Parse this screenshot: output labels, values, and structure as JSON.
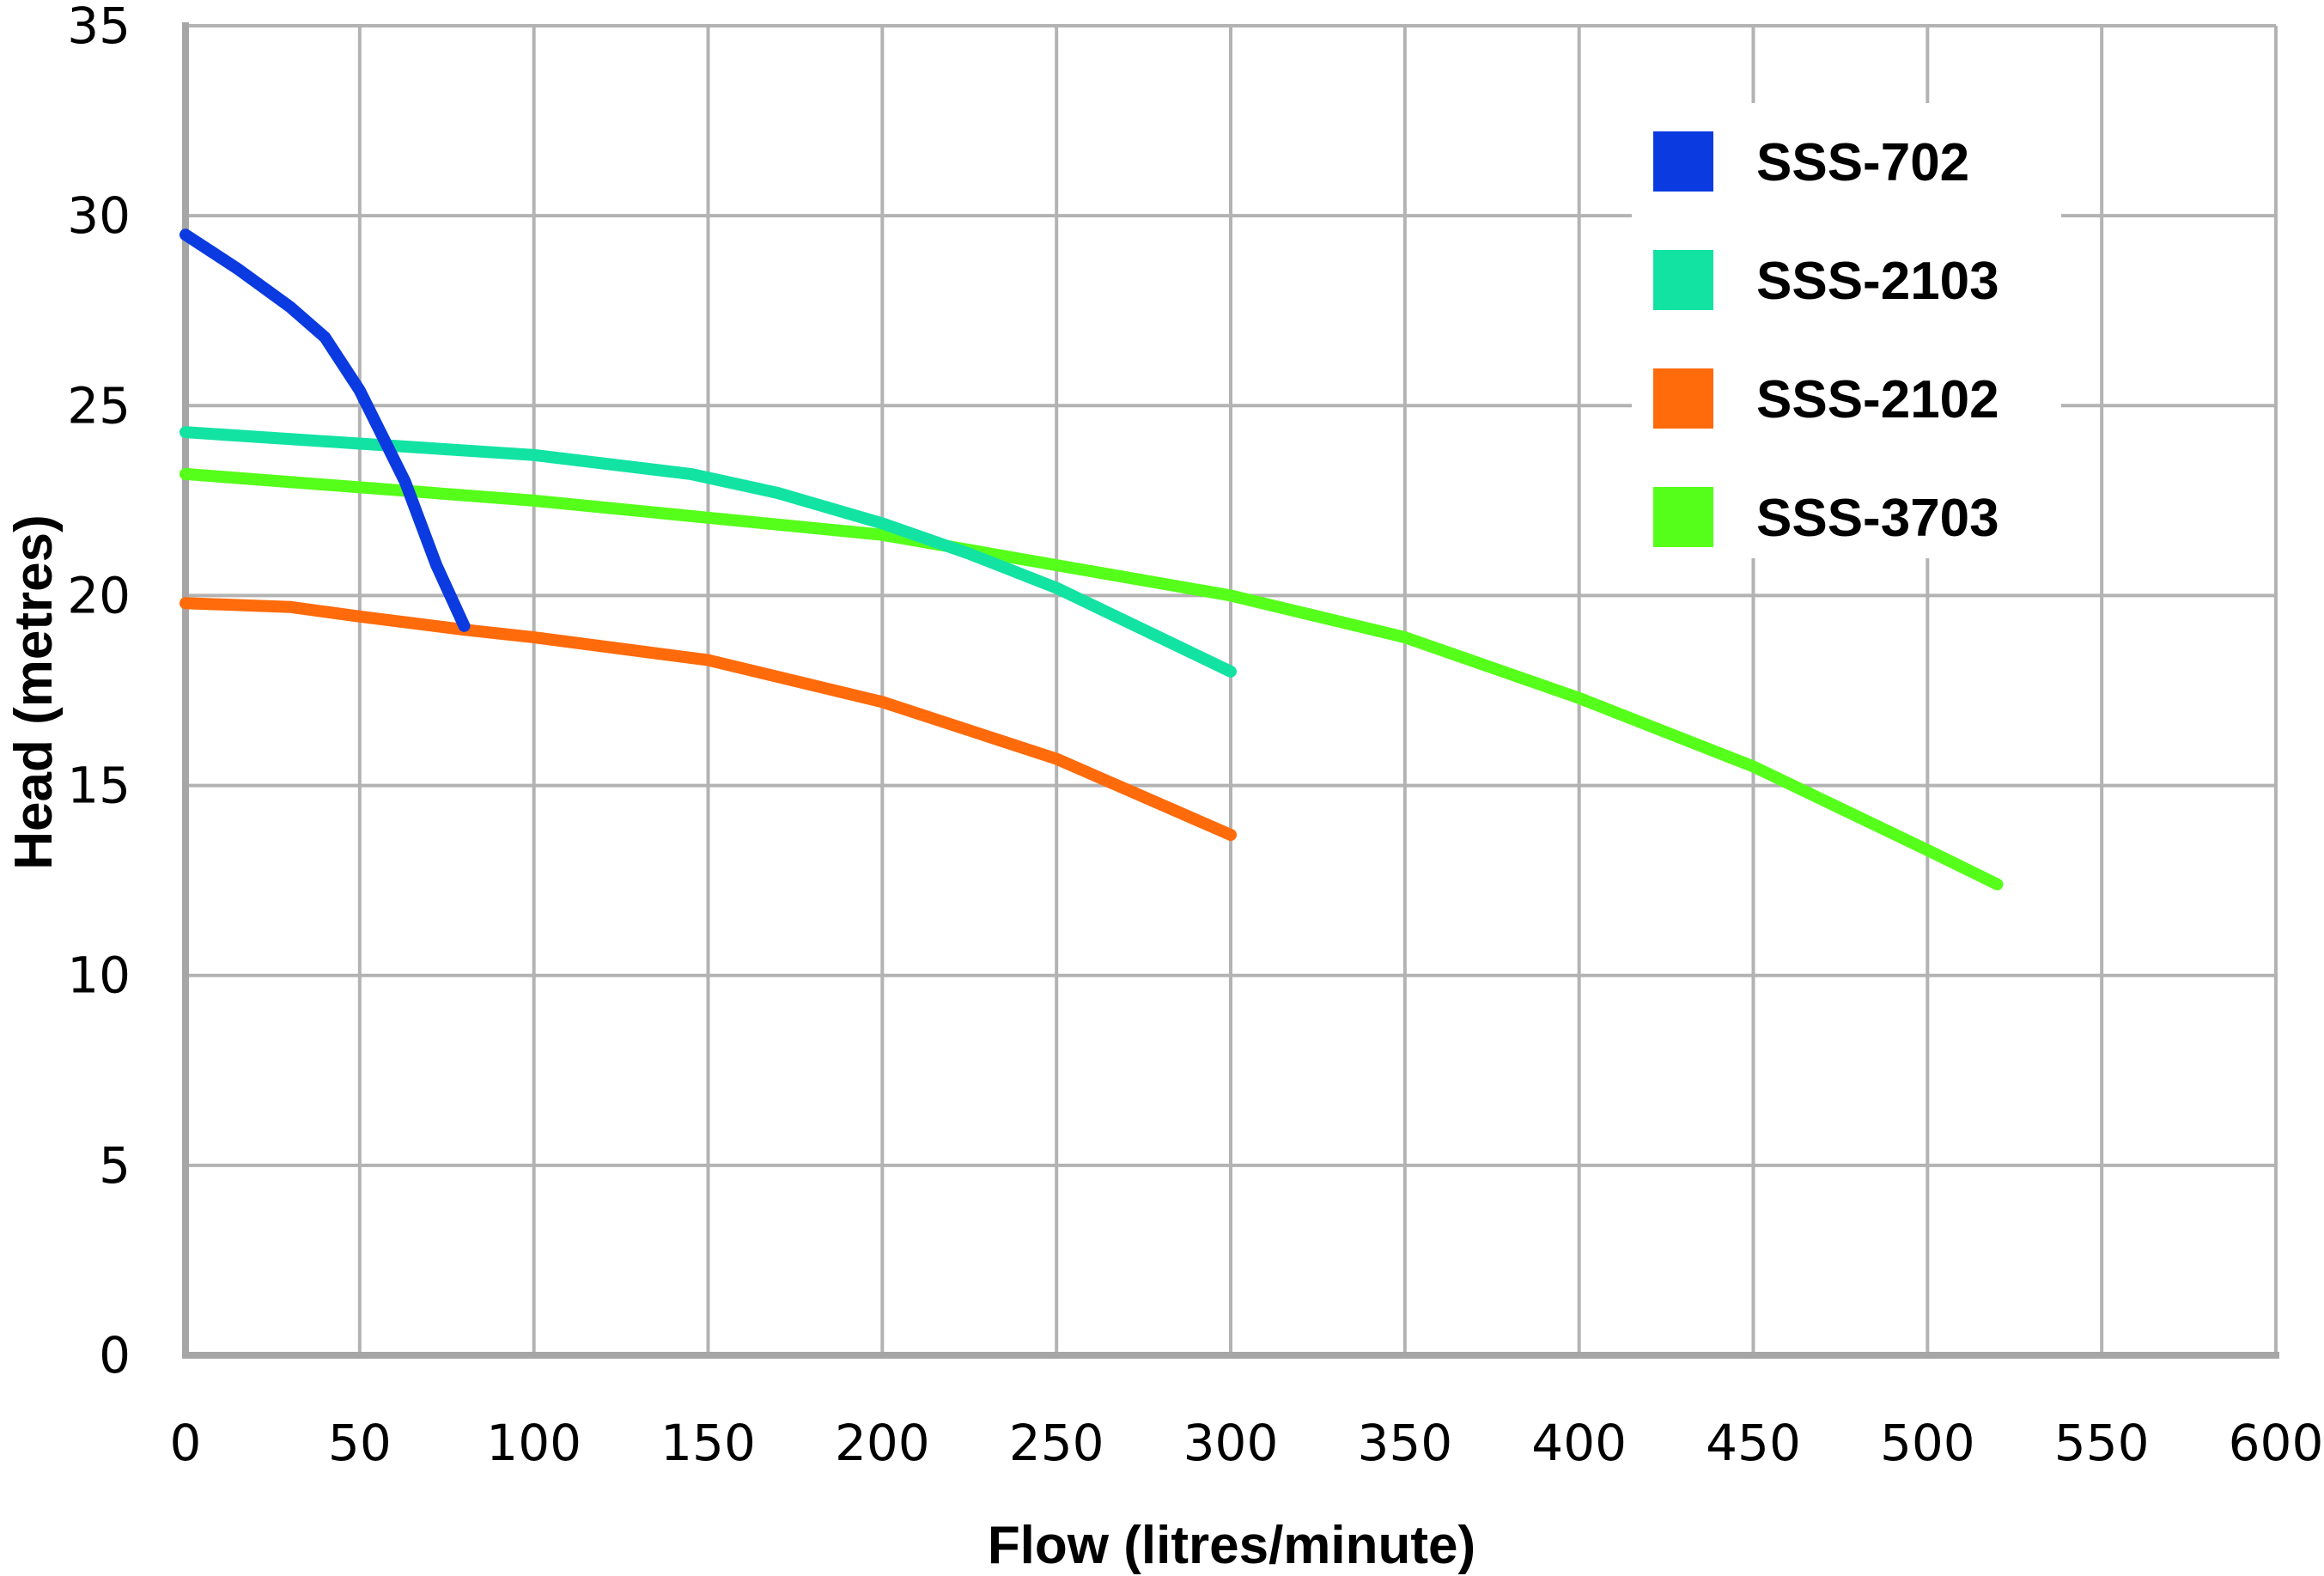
{
  "chart_data": {
    "type": "line",
    "title": "",
    "xlabel": "Flow (litres/minute)",
    "ylabel": "Head (metres)",
    "xlim": [
      0,
      600
    ],
    "ylim": [
      0,
      35
    ],
    "x_ticks": [
      0,
      50,
      100,
      150,
      200,
      250,
      300,
      350,
      400,
      450,
      500,
      550,
      600
    ],
    "y_ticks": [
      0,
      5,
      10,
      15,
      20,
      25,
      30,
      35
    ],
    "x_tick_labels": [
      "0",
      "50",
      "100",
      "150",
      "200",
      "250",
      "300",
      "350",
      "400",
      "450",
      "500",
      "550",
      "600"
    ],
    "y_tick_labels": [
      "0",
      "5",
      "10",
      "15",
      "20",
      "25",
      "30",
      "35"
    ],
    "grid": true,
    "legend_position": "top-right",
    "series": [
      {
        "name": "SSS-702",
        "color": "#0a3ae0",
        "points": [
          [
            0,
            29.5
          ],
          [
            15,
            28.6
          ],
          [
            30,
            27.6
          ],
          [
            40,
            26.8
          ],
          [
            50,
            25.4
          ],
          [
            63,
            23.0
          ],
          [
            72,
            20.8
          ],
          [
            80,
            19.2
          ]
        ]
      },
      {
        "name": "SSS-2103",
        "color": "#12e3a3",
        "points": [
          [
            0,
            24.3
          ],
          [
            50,
            24.0
          ],
          [
            100,
            23.7
          ],
          [
            145,
            23.2
          ],
          [
            170,
            22.7
          ],
          [
            200,
            21.9
          ],
          [
            225,
            21.1
          ],
          [
            250,
            20.2
          ],
          [
            275,
            19.1
          ],
          [
            300,
            18.0
          ]
        ]
      },
      {
        "name": "SSS-2102",
        "color": "#ff6a0a",
        "points": [
          [
            0,
            19.8
          ],
          [
            30,
            19.7
          ],
          [
            50,
            19.45
          ],
          [
            80,
            19.1
          ],
          [
            100,
            18.9
          ],
          [
            150,
            18.3
          ],
          [
            200,
            17.2
          ],
          [
            250,
            15.7
          ],
          [
            275,
            14.7
          ],
          [
            300,
            13.7
          ]
        ]
      },
      {
        "name": "SSS-3703",
        "color": "#56ff1a",
        "points": [
          [
            0,
            23.2
          ],
          [
            100,
            22.5
          ],
          [
            200,
            21.6
          ],
          [
            300,
            20.0
          ],
          [
            350,
            18.9
          ],
          [
            400,
            17.3
          ],
          [
            450,
            15.5
          ],
          [
            500,
            13.3
          ],
          [
            520,
            12.4
          ]
        ]
      }
    ]
  }
}
